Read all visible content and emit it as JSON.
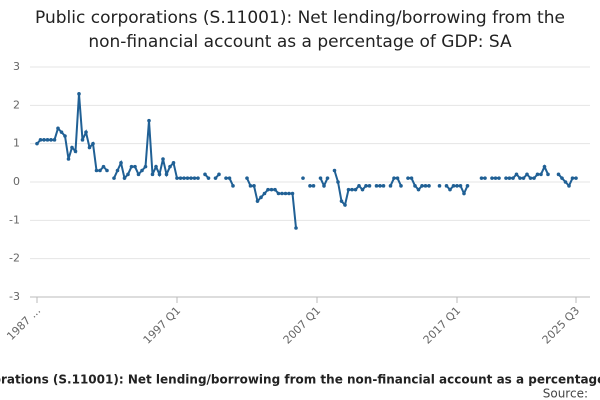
{
  "chart_data": {
    "type": "line",
    "title": "Public corporations (S.11001): Net lending/borrowing from the non-financial account as a percentage of GDP: SA",
    "source_label": "Source:",
    "categories": [
      "1987 ...",
      null,
      null,
      null,
      null,
      null,
      null,
      null,
      null,
      null,
      null,
      null,
      null,
      null,
      null,
      null,
      null,
      null,
      null,
      null,
      null,
      null,
      null,
      null,
      null,
      null,
      null,
      null,
      null,
      null,
      null,
      null,
      null,
      null,
      null,
      null,
      null,
      null,
      null,
      null,
      "1997 Q1",
      null,
      null,
      null,
      null,
      null,
      null,
      null,
      null,
      null,
      null,
      null,
      null,
      null,
      null,
      null,
      null,
      null,
      null,
      null,
      null,
      null,
      null,
      null,
      null,
      null,
      null,
      null,
      null,
      null,
      null,
      null,
      null,
      null,
      null,
      null,
      null,
      null,
      null,
      null,
      "2007 Q1",
      null,
      null,
      null,
      null,
      null,
      null,
      null,
      null,
      null,
      null,
      null,
      null,
      null,
      null,
      null,
      null,
      null,
      null,
      null,
      null,
      null,
      null,
      null,
      null,
      null,
      null,
      null,
      null,
      null,
      null,
      null,
      null,
      null,
      null,
      null,
      null,
      null,
      null,
      null,
      "2017 Q1",
      null,
      null,
      null,
      null,
      null,
      null,
      null,
      null,
      null,
      null,
      null,
      null,
      null,
      null,
      null,
      null,
      null,
      null,
      null,
      null,
      null,
      null,
      null,
      null,
      null,
      null,
      null,
      null,
      null,
      null,
      null,
      null,
      null,
      "2025 Q3"
    ],
    "values": [
      1.0,
      1.1,
      1.1,
      1.1,
      1.1,
      1.1,
      1.4,
      1.3,
      1.2,
      0.6,
      0.9,
      0.8,
      2.3,
      1.1,
      1.3,
      0.9,
      1.0,
      0.3,
      0.3,
      0.4,
      0.3,
      null,
      0.1,
      0.3,
      0.5,
      0.1,
      0.2,
      0.4,
      0.4,
      0.2,
      0.3,
      0.4,
      1.6,
      0.2,
      0.4,
      0.2,
      0.6,
      0.2,
      0.4,
      0.5,
      0.1,
      0.1,
      0.1,
      0.1,
      0.1,
      0.1,
      0.1,
      null,
      0.2,
      0.1,
      null,
      0.1,
      0.2,
      null,
      0.1,
      0.1,
      -0.1,
      null,
      null,
      null,
      0.1,
      -0.1,
      -0.1,
      -0.5,
      -0.4,
      -0.3,
      -0.2,
      -0.2,
      -0.2,
      -0.3,
      -0.3,
      -0.3,
      -0.3,
      -0.3,
      -1.2,
      null,
      0.1,
      null,
      -0.1,
      -0.1,
      null,
      0.1,
      -0.1,
      0.1,
      null,
      0.3,
      0.0,
      -0.5,
      -0.6,
      -0.2,
      -0.2,
      -0.2,
      -0.1,
      -0.2,
      -0.1,
      -0.1,
      null,
      -0.1,
      -0.1,
      -0.1,
      null,
      -0.1,
      0.1,
      0.1,
      -0.1,
      null,
      0.1,
      0.1,
      -0.1,
      -0.2,
      -0.1,
      -0.1,
      -0.1,
      null,
      null,
      -0.1,
      null,
      -0.1,
      -0.2,
      -0.1,
      -0.1,
      -0.1,
      -0.3,
      -0.1,
      null,
      null,
      null,
      0.1,
      0.1,
      null,
      0.1,
      0.1,
      0.1,
      null,
      0.1,
      0.1,
      0.1,
      0.2,
      0.1,
      0.1,
      0.2,
      0.1,
      0.1,
      0.2,
      0.2,
      0.4,
      0.2,
      null,
      null,
      0.2,
      0.1,
      0.0,
      -0.1,
      0.1,
      0.1
    ],
    "color": "#206095",
    "ylim": [
      -3,
      3
    ],
    "yticks": [
      -3,
      -2,
      -1,
      0,
      1,
      2,
      3
    ],
    "grid": true
  }
}
